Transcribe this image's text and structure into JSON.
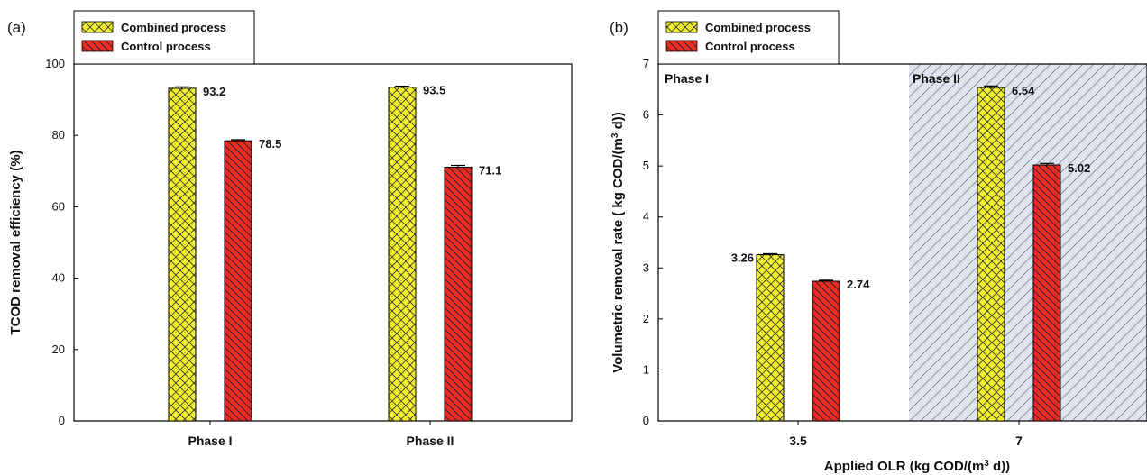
{
  "colors": {
    "combined": "#f2ef2e",
    "control": "#ee2a24",
    "phase2_shade": "#dfe4ef"
  },
  "chart_data": [
    {
      "panel": "(a)",
      "type": "bar",
      "categories": [
        "Phase I",
        "Phase II"
      ],
      "series": [
        {
          "name": "Combined process",
          "values": [
            93.2,
            93.5
          ],
          "errors": [
            0.4,
            0.3
          ],
          "labels": [
            "93.2",
            "93.5"
          ]
        },
        {
          "name": "Control process",
          "values": [
            78.5,
            71.1
          ],
          "errors": [
            0.3,
            0.5
          ],
          "labels": [
            "78.5",
            "71.1"
          ]
        }
      ],
      "ylabel": "TCOD removal efficiency (%)",
      "xlabel": "",
      "ylim": [
        0,
        100
      ],
      "yticks": [
        "0",
        "20",
        "40",
        "60",
        "80",
        "100"
      ],
      "legend": "top-left"
    },
    {
      "panel": "(b)",
      "type": "bar",
      "categories": [
        "3.5",
        "7"
      ],
      "series": [
        {
          "name": "Combined process",
          "values": [
            3.26,
            6.54
          ],
          "errors": [
            0.02,
            0.03
          ],
          "labels": [
            "3.26",
            "6.54"
          ]
        },
        {
          "name": "Control process",
          "values": [
            2.74,
            5.02
          ],
          "errors": [
            0.02,
            0.03
          ],
          "labels": [
            "2.74",
            "5.02"
          ]
        }
      ],
      "ylabel_main": "Volumetric removal rate ( kg COD/(m",
      "ylabel_sup": "3",
      "ylabel_end": " d))",
      "xlabel_main": "Applied OLR (kg COD/(m",
      "xlabel_sup": "3",
      "xlabel_end": " d))",
      "ylim": [
        0,
        7
      ],
      "yticks": [
        "0",
        "1",
        "2",
        "3",
        "4",
        "5",
        "6",
        "7"
      ],
      "regions": [
        {
          "label": "Phase I",
          "shaded": false
        },
        {
          "label": "Phase II",
          "shaded": true
        }
      ],
      "legend": "top-left"
    }
  ]
}
